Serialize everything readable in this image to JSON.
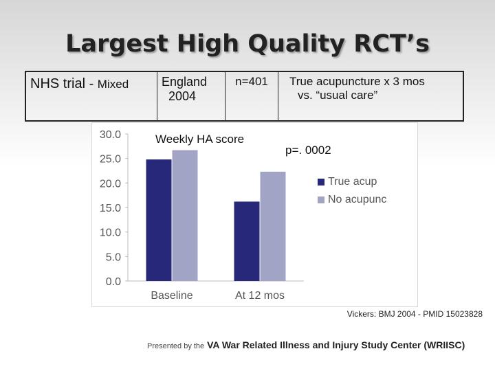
{
  "slide": {
    "title": "Largest High Quality RCT’s"
  },
  "trial_table": {
    "name_main": "NHS trial - ",
    "name_small": "Mixed",
    "location_line1": "England",
    "location_line2": "2004",
    "n": "n=401",
    "comparison_line1": "True acupuncture x 3 mos",
    "comparison_line2": "vs. “usual care”"
  },
  "annotations": {
    "pvalue": "p=. 0002",
    "citation": "Vickers: BMJ 2004 - PMID 15023828"
  },
  "footer": {
    "prefix": "Presented by the",
    "org": "VA War Related Illness and Injury Study Center (WRIISC)"
  },
  "colors": {
    "true_acup": "#27287a",
    "no_acup": "#a2a4c6"
  },
  "chart_data": {
    "type": "bar",
    "title": "Weekly HA score",
    "categories": [
      "Baseline",
      "At 12 mos"
    ],
    "series": [
      {
        "name": "True acup",
        "values": [
          24.8,
          16.2
        ]
      },
      {
        "name": "No acupunc",
        "values": [
          26.7,
          22.3
        ]
      }
    ],
    "ylim": [
      0,
      30
    ],
    "yticks": [
      "0.0",
      "5.0",
      "10.0",
      "15.0",
      "20.0",
      "25.0",
      "30.0"
    ],
    "legend": "right",
    "grid": false
  }
}
